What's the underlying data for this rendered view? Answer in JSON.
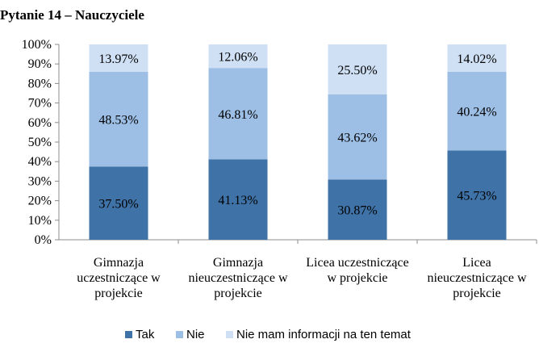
{
  "title": "Pytanie 14 – Nauczyciele",
  "chart_data": {
    "type": "bar",
    "stacked": true,
    "title": "Pytanie 14 – Nauczyciele",
    "categories": [
      [
        "Gimnazja",
        "uczestniczące w",
        "projekcie"
      ],
      [
        "Gimnazja",
        "nieuczestniczące w",
        "projekcie"
      ],
      [
        "Licea uczestniczące",
        "w projekcie"
      ],
      [
        "Licea",
        "nieuczestniczące w",
        "projekcie"
      ]
    ],
    "series": [
      {
        "name": "Tak",
        "color": "#3f72a6",
        "values": [
          37.5,
          41.13,
          30.87,
          45.73
        ],
        "labels": [
          "37.50%",
          "41.13%",
          "30.87%",
          "45.73%"
        ]
      },
      {
        "name": "Nie",
        "color": "#9dbfe6",
        "values": [
          48.53,
          46.81,
          43.62,
          40.24
        ],
        "labels": [
          "48.53%",
          "46.81%",
          "43.62%",
          "40.24%"
        ]
      },
      {
        "name": "Nie mam informacji na ten temat",
        "color": "#cfe0f5",
        "values": [
          13.97,
          12.06,
          25.5,
          14.02
        ],
        "labels": [
          "13.97%",
          "12.06%",
          "25.50%",
          "14.02%"
        ]
      }
    ],
    "yticks": [
      "0%",
      "10%",
      "20%",
      "30%",
      "40%",
      "50%",
      "60%",
      "70%",
      "80%",
      "90%",
      "100%"
    ],
    "ylim": [
      0,
      100
    ],
    "grid": false,
    "legend": "bottom"
  }
}
